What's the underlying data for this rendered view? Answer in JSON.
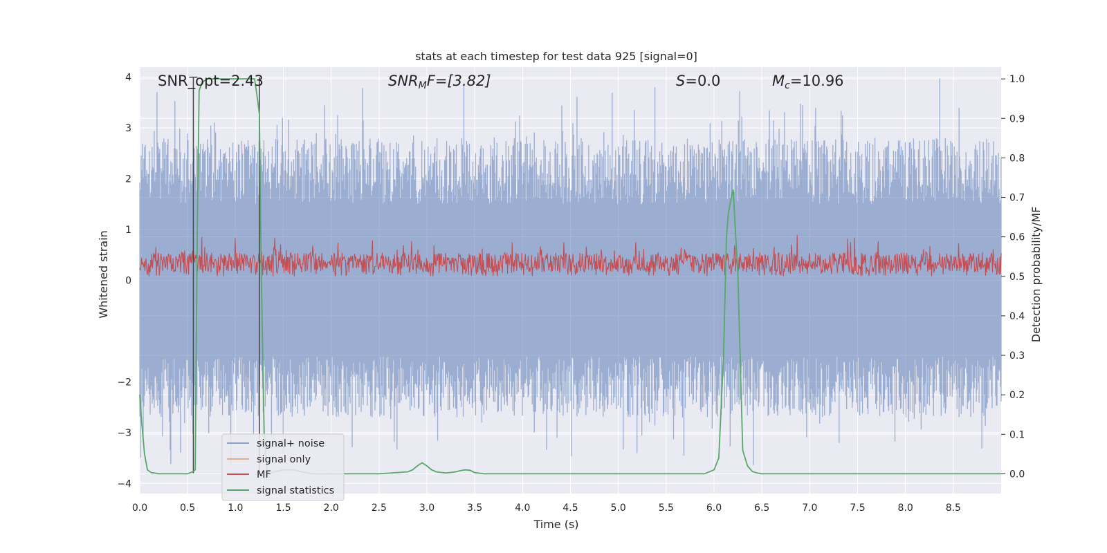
{
  "chart_data": {
    "type": "line",
    "title": "stats at each timestep for test data 925 [signal=0]",
    "xlabel": "Time (s)",
    "ylabel": "Whitened strain",
    "ylabel_right": "Detection probability/MF",
    "xlim": [
      0.0,
      9.0
    ],
    "ylim_left": [
      -4.2,
      4.2
    ],
    "ylim_right": [
      -0.05,
      1.03
    ],
    "x_ticks": [
      "0.0",
      "0.5",
      "1.0",
      "1.5",
      "2.0",
      "2.5",
      "3.0",
      "3.5",
      "4.0",
      "4.5",
      "5.0",
      "5.5",
      "6.0",
      "6.5",
      "7.0",
      "7.5",
      "8.0",
      "8.5"
    ],
    "y_left_ticks": [
      "4",
      "3",
      "2",
      "1",
      "0",
      "−2",
      "−3",
      "−4"
    ],
    "y_right_ticks": [
      "1.0",
      "0.9",
      "0.8",
      "0.7",
      "0.6",
      "0.5",
      "0.4",
      "0.3",
      "0.2",
      "0.1",
      "0.0"
    ],
    "colors": {
      "background": "#eaeaf2",
      "grid": "#ffffff",
      "noise": "#4c72b0",
      "signal_only": "#dd8452",
      "mf": "#c44e52",
      "stat": "#55a868",
      "marker": "#444444"
    },
    "annotations": {
      "snr_opt": "SNR_opt=2.43",
      "snr_mf_base": "SNR",
      "snr_mf_sub": "M",
      "snr_mf_rest": "F=[3.82]",
      "s_sym": "S",
      "s_val": "=0.0",
      "mc_sym": "M",
      "mc_sub": "c",
      "mc_val": "=10.96"
    },
    "markers_x": [
      0.56,
      1.25
    ],
    "legend": {
      "location": "lower-left",
      "entries": [
        "signal+ noise",
        "signal only",
        "MF",
        "signal statistics"
      ]
    },
    "series": [
      {
        "name": "signal statistics",
        "axis": "right",
        "x": [
          0.0,
          0.02,
          0.05,
          0.08,
          0.12,
          0.2,
          0.3,
          0.4,
          0.5,
          0.55,
          0.58,
          0.6,
          0.62,
          0.65,
          0.7,
          0.75,
          0.8,
          0.9,
          1.0,
          1.1,
          1.2,
          1.23,
          1.25,
          1.27,
          1.3,
          1.33,
          1.35,
          1.4,
          1.5,
          1.6,
          1.7,
          1.8,
          1.9,
          2.0,
          2.5,
          2.8,
          2.85,
          2.9,
          2.95,
          3.0,
          3.05,
          3.1,
          3.2,
          3.3,
          3.35,
          3.4,
          3.45,
          3.5,
          3.6,
          4.0,
          4.5,
          5.0,
          5.5,
          5.9,
          6.0,
          6.05,
          6.1,
          6.13,
          6.15,
          6.18,
          6.2,
          6.25,
          6.3,
          6.35,
          6.4,
          6.45,
          6.5,
          7.0,
          8.0,
          9.0
        ],
        "values": [
          0.2,
          0.13,
          0.05,
          0.01,
          0.003,
          0.0,
          0.0,
          0.0,
          0.0,
          0.005,
          0.01,
          0.6,
          0.97,
          0.99,
          1.0,
          1.0,
          1.0,
          1.0,
          1.0,
          1.0,
          1.0,
          0.95,
          0.91,
          0.5,
          0.1,
          0.01,
          0.0,
          0.005,
          0.01,
          0.01,
          0.005,
          0.0,
          0.0,
          0.0,
          0.0,
          0.005,
          0.01,
          0.02,
          0.028,
          0.02,
          0.01,
          0.005,
          0.002,
          0.005,
          0.008,
          0.01,
          0.009,
          0.003,
          0.0,
          0.0,
          0.0,
          0.0,
          0.0,
          0.0,
          0.01,
          0.04,
          0.3,
          0.6,
          0.66,
          0.7,
          0.72,
          0.5,
          0.06,
          0.02,
          0.006,
          0.002,
          0.0,
          0.0,
          0.0,
          0.0
        ]
      },
      {
        "name": "signal+ noise",
        "axis": "left",
        "description_stats": {
          "band_low": -1.5,
          "band_high": 1.5,
          "max": 4.0,
          "min": -3.8
        }
      },
      {
        "name": "MF",
        "axis": "right",
        "description_stats": {
          "baseline": 0.5,
          "peak": 0.61
        }
      }
    ]
  }
}
